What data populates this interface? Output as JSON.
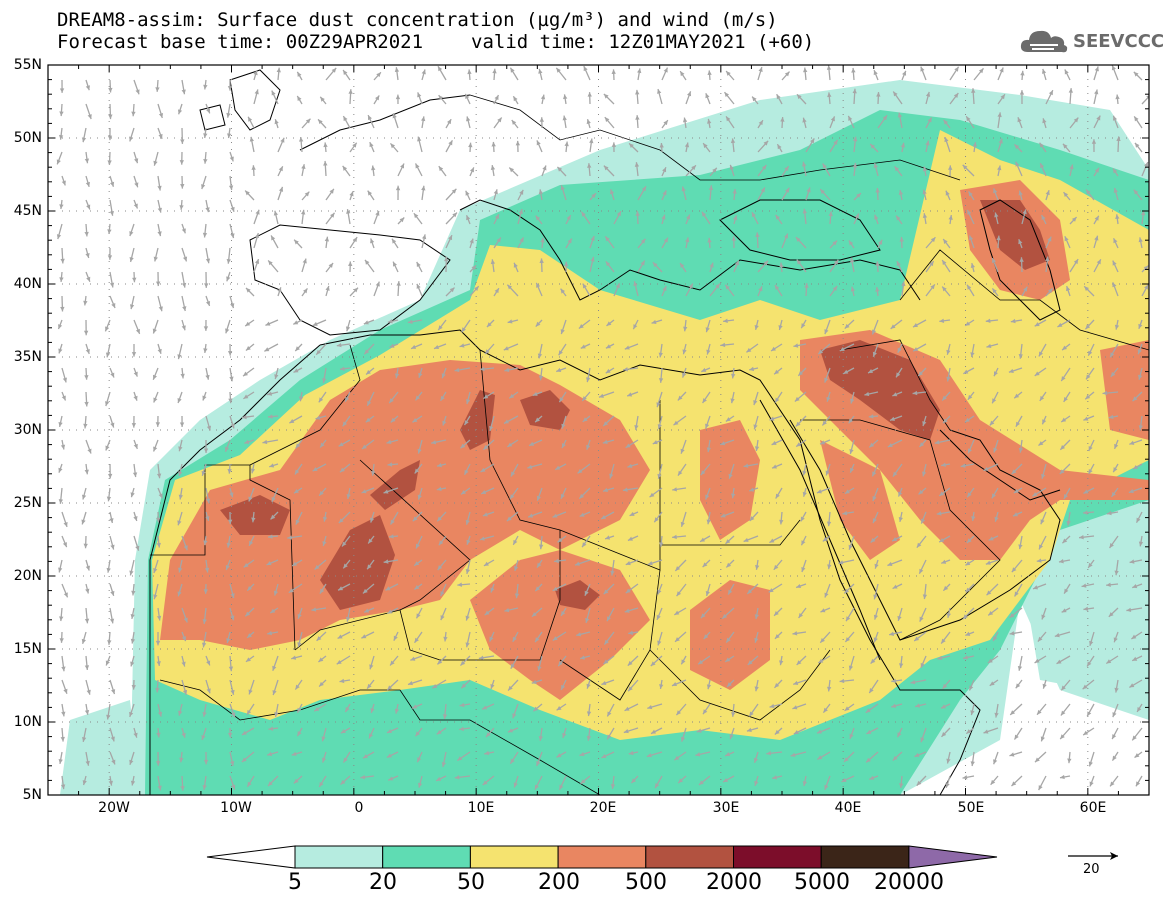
{
  "title": {
    "line1": "DREAM8-assim: Surface dust concentration (µg/m³) and wind (m/s)",
    "base_time": "Forecast base time: 00Z29APR2021",
    "valid_time": "valid time: 12Z01MAY2021 (+60)"
  },
  "logo": {
    "text": "SEEVCCC",
    "icon": "cloud-logo-icon"
  },
  "map": {
    "lat_labels": [
      "55N",
      "50N",
      "45N",
      "40N",
      "35N",
      "30N",
      "25N",
      "20N",
      "15N",
      "10N",
      "5N"
    ],
    "lon_labels": [
      "20W",
      "10W",
      "0",
      "10E",
      "20E",
      "30E",
      "40E",
      "50E",
      "60E"
    ],
    "lat_range": [
      5,
      55
    ],
    "lon_range": [
      -25,
      65
    ]
  },
  "colorbar": {
    "labels": [
      "5",
      "20",
      "50",
      "200",
      "500",
      "2000",
      "5000",
      "20000"
    ],
    "colors": [
      "#ffffff",
      "#b6ece0",
      "#5fdcb3",
      "#f5e36f",
      "#e98661",
      "#b25240",
      "#7c0d2a",
      "#3b2518",
      "#8e69a8"
    ],
    "units_ref": "µg/m³"
  },
  "wind_reference": {
    "label": "20",
    "units": "m/s"
  },
  "palette": {
    "land_outline": "#000000",
    "wind_arrows": "#a6a6a6"
  }
}
